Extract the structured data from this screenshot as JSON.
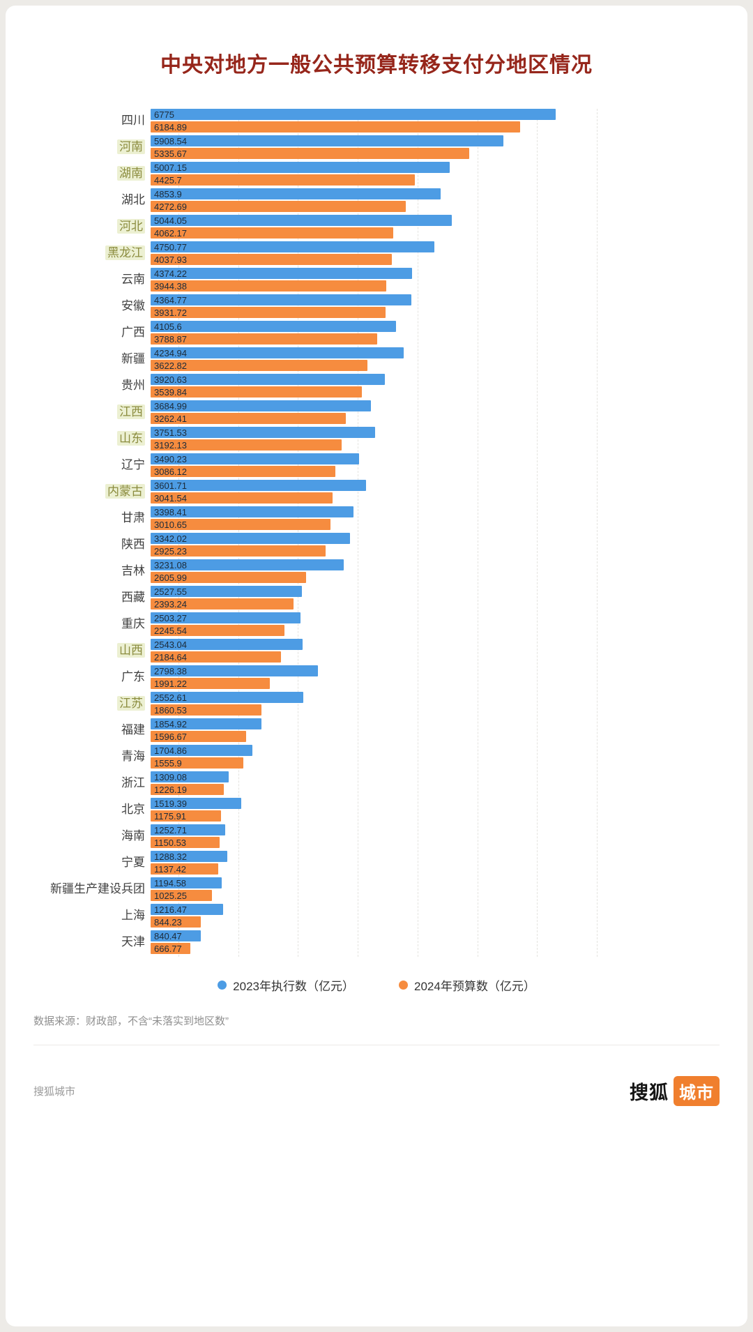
{
  "chart_data": {
    "type": "bar",
    "orientation": "horizontal",
    "title": "中央对地方一般公共预算转移支付分地区情况",
    "xlim": [
      0,
      7000
    ],
    "grid": "dashed-vertical",
    "legend_position": "bottom",
    "categories": [
      "四川",
      "河南",
      "湖南",
      "湖北",
      "河北",
      "黑龙江",
      "云南",
      "安徽",
      "广西",
      "新疆",
      "贵州",
      "江西",
      "山东",
      "辽宁",
      "内蒙古",
      "甘肃",
      "陕西",
      "吉林",
      "西藏",
      "重庆",
      "山西",
      "广东",
      "江苏",
      "福建",
      "青海",
      "浙江",
      "北京",
      "海南",
      "宁夏",
      "新疆生产建设兵团",
      "上海",
      "天津"
    ],
    "highlighted_categories": [
      "河南",
      "湖南",
      "河北",
      "黑龙江",
      "江西",
      "山东",
      "内蒙古",
      "山西",
      "江苏"
    ],
    "series": [
      {
        "name": "2023年执行数（亿元）",
        "color": "#4d9ce4",
        "values": [
          6775,
          5908.54,
          5007.15,
          4853.9,
          5044.05,
          4750.77,
          4374.22,
          4364.77,
          4105.6,
          4234.94,
          3920.63,
          3684.99,
          3751.53,
          3490.23,
          3601.71,
          3398.41,
          3342.02,
          3231.08,
          2527.55,
          2503.27,
          2543.04,
          2798.38,
          2552.61,
          1854.92,
          1704.86,
          1309.08,
          1519.39,
          1252.71,
          1288.32,
          1194.58,
          1216.47,
          840.47
        ]
      },
      {
        "name": "2024年预算数（亿元）",
        "color": "#f68c3f",
        "values": [
          6184.89,
          5335.67,
          4425.7,
          4272.69,
          4062.17,
          4037.93,
          3944.38,
          3931.72,
          3788.87,
          3622.82,
          3539.84,
          3262.41,
          3192.13,
          3086.12,
          3041.54,
          3010.65,
          2925.23,
          2605.99,
          2393.24,
          2245.54,
          2184.64,
          1991.22,
          1860.53,
          1596.67,
          1555.9,
          1226.19,
          1175.91,
          1150.53,
          1137.42,
          1025.25,
          844.23,
          666.77
        ]
      }
    ]
  },
  "source_note": "数据来源：财政部，不含“未落实到地区数”",
  "footer": {
    "left_text": "搜狐城市",
    "logo_text": "搜狐",
    "logo_badge": "城市"
  }
}
